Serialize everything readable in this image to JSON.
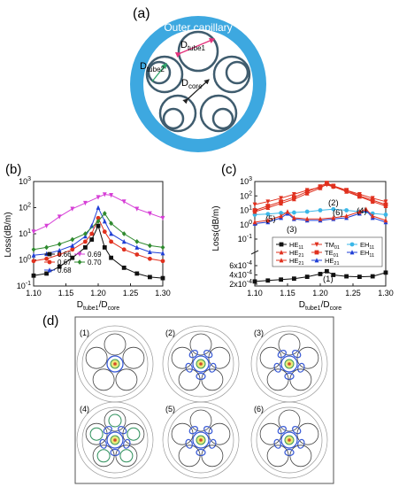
{
  "panels": {
    "a": {
      "label": "(a)",
      "outer_label": "Outer capillary",
      "tube1_label": "D",
      "tube1_sub": "tube1",
      "tube2_label": "D",
      "tube2_sub": "tube2",
      "core_label": "D",
      "core_sub": "core",
      "colors": {
        "capillary": "#3da8e0",
        "tube": "#3f5c6e",
        "arrow_pink": "#e4327c",
        "arrow_green": "#2fa66a",
        "arrow_black": "#222222"
      }
    },
    "b": {
      "label": "(b)",
      "ylabel": "Loss(dB/m)",
      "xlabel_main": "D",
      "xlabel_sub1": "tube1",
      "xlabel_mid": "/D",
      "xlabel_sub2": "core",
      "xticks": [
        "1.10",
        "1.15",
        "1.20",
        "1.25",
        "1.30"
      ],
      "yticks": [
        {
          "base": "10",
          "exp": "-1"
        },
        {
          "base": "10",
          "exp": "0"
        },
        {
          "base": "10",
          "exp": "1"
        },
        {
          "base": "10",
          "exp": "2"
        },
        {
          "base": "10",
          "exp": "3"
        }
      ],
      "legend": [
        {
          "name": "0.66",
          "color": "#111111",
          "marker": "square"
        },
        {
          "name": "0.67",
          "color": "#e0301e",
          "marker": "circle"
        },
        {
          "name": "0.68",
          "color": "#1f3fd6",
          "marker": "triangle"
        },
        {
          "name": "0.69",
          "color": "#d63fd6",
          "marker": "triangle-down"
        },
        {
          "name": "0.70",
          "color": "#2f8a2f",
          "marker": "diamond"
        }
      ]
    },
    "c": {
      "label": "(c)",
      "ylabel": "Loss(dB/m)",
      "xlabel_main": "D",
      "xlabel_sub1": "tube1",
      "xlabel_mid": "/D",
      "xlabel_sub2": "core",
      "xticks": [
        "1.10",
        "1.15",
        "1.20",
        "1.25",
        "1.30"
      ],
      "yticks_upper": [
        {
          "base": "10",
          "exp": "-1"
        },
        {
          "base": "10",
          "exp": "0"
        },
        {
          "base": "10",
          "exp": "1"
        },
        {
          "base": "10",
          "exp": "2"
        },
        {
          "base": "10",
          "exp": "3"
        }
      ],
      "yticks_lower": [
        {
          "base": "6x10",
          "exp": "-4"
        },
        {
          "base": "4x10",
          "exp": "-4"
        },
        {
          "base": "2x10",
          "exp": "-4"
        }
      ],
      "legend": [
        {
          "name": "HE",
          "sub": "11",
          "color": "#111111"
        },
        {
          "name": "TM",
          "sub": "01",
          "color": "#e0301e"
        },
        {
          "name": "EH",
          "sub": "11",
          "color": "#3ab7e8"
        },
        {
          "name": "HE",
          "sub": "21",
          "color": "#e0301e"
        },
        {
          "name": "TE",
          "sub": "01",
          "color": "#e0301e"
        },
        {
          "name": "EH",
          "sub": "11",
          "color": "#1f3fd6"
        },
        {
          "name": "HE",
          "sub": "21",
          "color": "#e0301e"
        },
        {
          "name": "HE",
          "sub": "21",
          "color": "#1f3fd6"
        }
      ],
      "annotations": [
        "(1)",
        "(2)",
        "(3)",
        "(4)",
        "(5)",
        "(6)"
      ]
    },
    "d": {
      "label": "(d)",
      "modes": [
        "(1)",
        "(2)",
        "(3)",
        "(4)",
        "(5)",
        "(6)"
      ]
    }
  },
  "chart_data": [
    {
      "type": "line",
      "title": "(b)",
      "xlabel": "Dtube1/Dcore",
      "ylabel": "Loss(dB/m)",
      "xlim": [
        1.1,
        1.3
      ],
      "ylim": [
        0.1,
        1000
      ],
      "yscale": "log",
      "series": [
        {
          "name": "0.66",
          "x": [
            1.1,
            1.12,
            1.14,
            1.16,
            1.18,
            1.19,
            1.2,
            1.21,
            1.22,
            1.24,
            1.26,
            1.28,
            1.3
          ],
          "y": [
            0.25,
            0.3,
            0.55,
            1.2,
            3,
            6,
            20,
            3,
            1.2,
            0.5,
            0.3,
            0.22,
            0.2
          ]
        },
        {
          "name": "0.67",
          "x": [
            1.1,
            1.12,
            1.14,
            1.16,
            1.18,
            1.19,
            1.2,
            1.21,
            1.22,
            1.24,
            1.26,
            1.28,
            1.3
          ],
          "y": [
            0.9,
            1.1,
            1.6,
            2.5,
            5,
            10,
            40,
            12,
            5,
            2.5,
            1.6,
            1.1,
            0.9
          ]
        },
        {
          "name": "0.68",
          "x": [
            1.1,
            1.12,
            1.14,
            1.16,
            1.18,
            1.19,
            1.2,
            1.21,
            1.22,
            1.24,
            1.26,
            1.28,
            1.3
          ],
          "y": [
            1.5,
            1.7,
            2.3,
            3.5,
            8,
            20,
            100,
            30,
            10,
            5,
            3,
            2,
            1.8
          ]
        },
        {
          "name": "0.69",
          "x": [
            1.1,
            1.12,
            1.14,
            1.16,
            1.18,
            1.2,
            1.21,
            1.22,
            1.24,
            1.26,
            1.28,
            1.3
          ],
          "y": [
            12,
            20,
            45,
            90,
            150,
            250,
            320,
            300,
            170,
            90,
            60,
            40
          ]
        },
        {
          "name": "0.70",
          "x": [
            1.1,
            1.12,
            1.14,
            1.16,
            1.18,
            1.2,
            1.21,
            1.22,
            1.24,
            1.26,
            1.28,
            1.3
          ],
          "y": [
            2.5,
            3,
            4,
            6,
            10,
            30,
            60,
            25,
            10,
            5,
            3.5,
            3
          ]
        }
      ]
    },
    {
      "type": "line",
      "title": "(c)",
      "xlabel": "Dtube1/Dcore",
      "ylabel": "Loss(dB/m)",
      "xlim": [
        1.1,
        1.3
      ],
      "ylim": [
        0.0002,
        1000
      ],
      "yscale": "log (broken axis)",
      "series": [
        {
          "name": "HE11",
          "x": [
            1.1,
            1.12,
            1.14,
            1.16,
            1.18,
            1.2,
            1.21,
            1.22,
            1.24,
            1.26,
            1.28,
            1.3
          ],
          "y": [
            0.00026,
            0.00028,
            0.0003,
            0.00032,
            0.00036,
            0.00042,
            0.00048,
            0.0004,
            0.00037,
            0.00036,
            0.00037,
            0.00045
          ]
        },
        {
          "name": "TM01",
          "x": [
            1.1,
            1.12,
            1.14,
            1.16,
            1.18,
            1.2,
            1.21,
            1.22,
            1.24,
            1.26,
            1.28,
            1.3
          ],
          "y": [
            25,
            40,
            70,
            130,
            250,
            400,
            600,
            420,
            250,
            130,
            70,
            40
          ]
        },
        {
          "name": "EH11",
          "x": [
            1.1,
            1.12,
            1.14,
            1.16,
            1.18,
            1.2,
            1.22,
            1.24,
            1.26,
            1.28,
            1.3
          ],
          "y": [
            5,
            5.5,
            6.5,
            7,
            8,
            10,
            12,
            10,
            8,
            6,
            5
          ]
        },
        {
          "name": "HE21",
          "x": [
            1.1,
            1.12,
            1.14,
            1.16,
            1.18,
            1.2,
            1.21,
            1.22,
            1.24,
            1.26,
            1.28,
            1.3
          ],
          "y": [
            8,
            15,
            30,
            60,
            150,
            350,
            700,
            450,
            200,
            90,
            40,
            20
          ]
        },
        {
          "name": "TE01",
          "x": [
            1.1,
            1.12,
            1.14,
            1.16,
            1.18,
            1.2,
            1.21,
            1.22,
            1.24,
            1.26,
            1.28,
            1.3
          ],
          "y": [
            10,
            20,
            40,
            80,
            200,
            450,
            800,
            500,
            250,
            100,
            50,
            25
          ]
        },
        {
          "name": "EH11",
          "x": [
            1.1,
            1.12,
            1.14,
            1.15,
            1.16,
            1.18,
            1.2,
            1.22,
            1.24,
            1.26,
            1.27,
            1.28,
            1.3
          ],
          "y": [
            1.2,
            1.5,
            3,
            6,
            2.5,
            2,
            2,
            2.5,
            3,
            6,
            10,
            3,
            1.5
          ]
        },
        {
          "name": "HE21",
          "x": [
            1.1,
            1.12,
            1.14,
            1.15,
            1.16,
            1.18,
            1.2,
            1.22,
            1.24,
            1.26,
            1.27,
            1.28,
            1.3
          ],
          "y": [
            1.5,
            2,
            4,
            8,
            3,
            2.5,
            2.5,
            3,
            4,
            8,
            12,
            4,
            2
          ]
        }
      ]
    }
  ]
}
